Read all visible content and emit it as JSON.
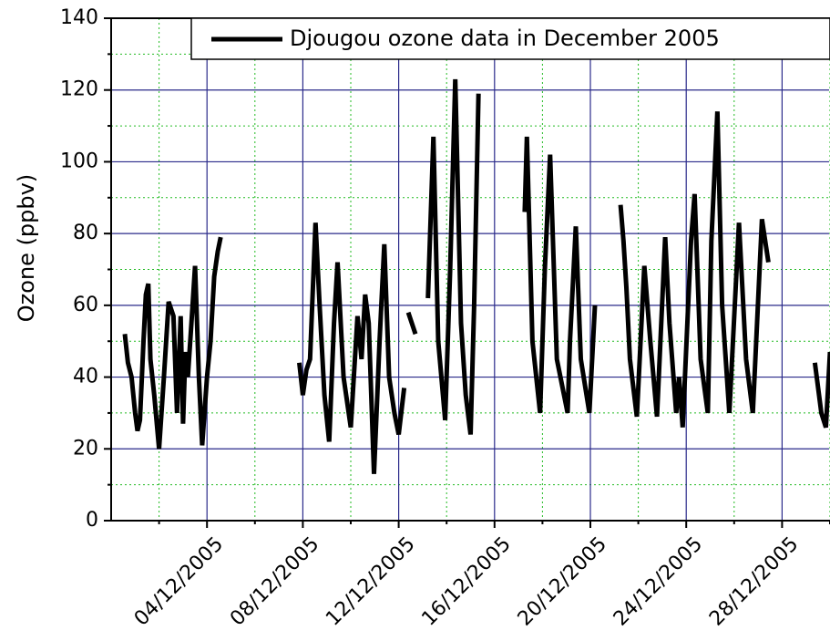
{
  "chart_data": {
    "type": "line",
    "ylabel": "Ozone (ppbv)",
    "xlim": [
      0,
      30
    ],
    "ylim": [
      0,
      140
    ],
    "xticks": [
      {
        "value": 4,
        "label": "04/12/2005"
      },
      {
        "value": 8,
        "label": "08/12/2005"
      },
      {
        "value": 12,
        "label": "12/12/2005"
      },
      {
        "value": 16,
        "label": "16/12/2005"
      },
      {
        "value": 20,
        "label": "20/12/2005"
      },
      {
        "value": 24,
        "label": "24/12/2005"
      },
      {
        "value": 28,
        "label": "28/12/2005"
      }
    ],
    "xminor": [
      2,
      6,
      10,
      14,
      18,
      22,
      26,
      30
    ],
    "yticks": [
      0,
      20,
      40,
      60,
      80,
      100,
      120,
      140
    ],
    "yminor": [
      10,
      30,
      50,
      70,
      90,
      110,
      130
    ],
    "grid": true,
    "legend": "top-right",
    "series": [
      {
        "name": "Djougou ozone data in December 2005",
        "color": "#000000",
        "x": [
          0.57,
          0.7,
          0.85,
          1.0,
          1.1,
          1.2,
          1.35,
          1.45,
          1.55,
          1.64,
          1.8,
          2.0,
          2.2,
          2.4,
          2.6,
          2.75,
          2.9,
          3.0,
          3.1,
          3.2,
          3.35,
          3.5,
          3.66,
          3.8,
          4.0,
          4.15,
          4.3,
          4.45,
          4.57,
          null,
          7.85,
          8.0,
          8.15,
          8.3,
          8.53,
          8.7,
          8.9,
          9.1,
          9.3,
          9.45,
          9.7,
          10.0,
          10.28,
          10.45,
          10.6,
          10.75,
          10.97,
          11.2,
          11.4,
          11.6,
          11.82,
          12.0,
          12.23,
          null,
          12.4,
          12.7,
          null,
          13.22,
          13.45,
          13.65,
          13.94,
          14.15,
          14.36,
          14.6,
          14.8,
          15.0,
          15.15,
          15.33,
          null,
          17.26,
          17.35,
          17.58,
          17.9,
          18.1,
          18.32,
          18.6,
          19.05,
          19.15,
          19.39,
          19.6,
          19.96,
          20.19,
          null,
          21.26,
          21.38,
          21.5,
          21.65,
          21.94,
          22.25,
          22.5,
          22.78,
          23.12,
          23.3,
          23.58,
          23.7,
          23.85,
          24.2,
          24.35,
          24.6,
          24.9,
          25.05,
          25.3,
          25.5,
          25.8,
          26.2,
          26.5,
          26.78,
          27.16,
          27.43,
          null,
          29.37,
          29.64,
          29.83,
          30.0
        ],
        "values": [
          52,
          44,
          40,
          30,
          25,
          28,
          50,
          63,
          66,
          45,
          35,
          20,
          40,
          61,
          57,
          30,
          57,
          27,
          47,
          40,
          55,
          71,
          40,
          21,
          40,
          50,
          68,
          75,
          79,
          null,
          44,
          35,
          42,
          45,
          83,
          60,
          35,
          22,
          55,
          72,
          40,
          26,
          57,
          45,
          63,
          55,
          13,
          50,
          77,
          40,
          30,
          24,
          37,
          null,
          58,
          52,
          null,
          62,
          107,
          50,
          28,
          70,
          123,
          55,
          35,
          24,
          60,
          119,
          null,
          86,
          107,
          50,
          30,
          70,
          102,
          45,
          30,
          50,
          82,
          45,
          30,
          60,
          null,
          88,
          78,
          65,
          45,
          29,
          71,
          50,
          29,
          79,
          55,
          30,
          40,
          26,
          78,
          91,
          45,
          30,
          78,
          114,
          60,
          30,
          83,
          45,
          30,
          84,
          72,
          null,
          44,
          30,
          26,
          47
        ]
      }
    ]
  }
}
